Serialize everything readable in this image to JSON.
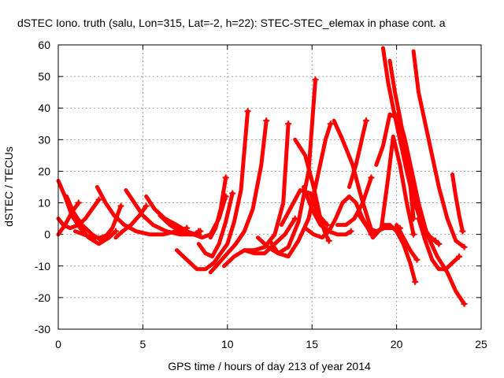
{
  "chart_data": {
    "type": "scatter",
    "title": "dSTEC Iono. truth (salu, Lon=315, Lat=-2, h=22): STEC-STEC_elemax in phase cont. a",
    "xlabel": "GPS time / hours of day 213 of year 2014",
    "ylabel": "dSTEC  / TECUs",
    "xlim": [
      0,
      25
    ],
    "ylim": [
      -30,
      60
    ],
    "xticks": [
      "0",
      "5",
      "10",
      "15",
      "20",
      "25"
    ],
    "yticks": [
      "-30",
      "-20",
      "-10",
      "0",
      "10",
      "20",
      "30",
      "40",
      "50",
      "60"
    ],
    "grid": true,
    "marker": "plus",
    "color": "#ff0000",
    "series": [
      {
        "x": [
          0.0,
          0.3,
          0.7,
          1.2,
          1.6,
          2.0,
          2.4
        ],
        "y": [
          5,
          3,
          2,
          3,
          5,
          8,
          11
        ]
      },
      {
        "x": [
          0.0,
          0.4,
          0.8,
          1.3,
          1.8,
          2.4,
          3.0,
          3.4
        ],
        "y": [
          17,
          12,
          6,
          2,
          -1,
          -3,
          -1,
          1
        ]
      },
      {
        "x": [
          0.0,
          0.4,
          0.8,
          1.2
        ],
        "y": [
          0,
          3,
          7,
          10
        ]
      },
      {
        "x": [
          0.5,
          0.9,
          1.4,
          2.0,
          2.6,
          3.2,
          3.7
        ],
        "y": [
          12,
          7,
          3,
          0,
          -2,
          2,
          9
        ]
      },
      {
        "x": [
          1.0,
          1.5,
          2.0,
          2.5,
          3.0
        ],
        "y": [
          1,
          0,
          -1,
          -1,
          0
        ]
      },
      {
        "x": [
          2.3,
          2.8,
          3.3,
          3.9,
          4.6,
          5.4,
          6.2,
          7.0,
          7.6
        ],
        "y": [
          15,
          10,
          6,
          3,
          1,
          0,
          0,
          1,
          2
        ]
      },
      {
        "x": [
          3.4,
          3.8,
          4.3,
          4.8,
          5.2
        ],
        "y": [
          -1,
          1,
          3,
          6,
          9
        ]
      },
      {
        "x": [
          4.0,
          4.5,
          5.0,
          5.6,
          6.4,
          7.2,
          8.0,
          8.3
        ],
        "y": [
          14,
          10,
          6,
          3,
          1,
          0,
          0,
          1
        ]
      },
      {
        "x": [
          5.2,
          5.7,
          6.3,
          7.0,
          7.6,
          8.1,
          8.4
        ],
        "y": [
          12,
          8,
          5,
          3,
          1,
          0,
          1
        ]
      },
      {
        "x": [
          6.0,
          6.6,
          7.2,
          7.8,
          8.3
        ],
        "y": [
          6,
          3,
          1,
          0,
          0
        ]
      },
      {
        "x": [
          7.0,
          7.5,
          8.0,
          8.5,
          9.0,
          9.5,
          9.9
        ],
        "y": [
          2,
          1,
          0,
          -1,
          0,
          5,
          12
        ]
      },
      {
        "x": [
          7.0,
          7.6,
          8.2,
          8.7,
          9.2,
          9.6,
          10.0,
          10.4,
          10.8,
          11.2
        ],
        "y": [
          -5,
          -8,
          -11,
          -11,
          -9,
          -6,
          -3,
          4,
          14,
          39
        ]
      },
      {
        "x": [
          8.3,
          8.7,
          9.1,
          9.5,
          9.9,
          10.3
        ],
        "y": [
          -3,
          -6,
          -7,
          -3,
          4,
          13
        ]
      },
      {
        "x": [
          9.0,
          9.3,
          9.6,
          9.9
        ],
        "y": [
          -1,
          2,
          8,
          18
        ]
      },
      {
        "x": [
          9.0,
          9.5,
          10.0,
          10.5,
          11.0,
          11.5,
          12.0,
          12.3
        ],
        "y": [
          -12,
          -9,
          -6,
          -3,
          1,
          8,
          22,
          36
        ]
      },
      {
        "x": [
          9.8,
          10.4,
          11.0,
          11.6,
          12.2,
          12.8,
          13.3,
          13.6
        ],
        "y": [
          -10,
          -7,
          -5,
          -5,
          -4,
          0,
          10,
          35
        ]
      },
      {
        "x": [
          11.0,
          11.6,
          12.2,
          12.8,
          13.4,
          14.0
        ],
        "y": [
          -5,
          -6,
          -6,
          -3,
          0,
          5
        ]
      },
      {
        "x": [
          11.8,
          12.4,
          13.0,
          13.6,
          14.2,
          14.8,
          15.2
        ],
        "y": [
          -1,
          -4,
          -6,
          -4,
          4,
          20,
          49
        ]
      },
      {
        "x": [
          12.5,
          13.0,
          13.6,
          14.2,
          14.8,
          15.4,
          15.8,
          16.1
        ],
        "y": [
          -2,
          -6,
          -7,
          -2,
          5,
          20,
          30,
          35
        ]
      },
      {
        "x": [
          13.2,
          13.7,
          14.3,
          14.9,
          15.4,
          15.9
        ],
        "y": [
          3,
          8,
          14,
          13,
          6,
          3
        ]
      },
      {
        "x": [
          14.0,
          14.6,
          15.1,
          15.5,
          15.8,
          16.0
        ],
        "y": [
          30,
          25,
          15,
          5,
          0,
          -2
        ]
      },
      {
        "x": [
          14.5,
          15.0,
          15.5,
          16.0,
          16.5,
          17.0,
          17.3
        ],
        "y": [
          15,
          8,
          3,
          1,
          0,
          0,
          1
        ]
      },
      {
        "x": [
          14.6,
          15.1,
          15.6,
          16.0,
          16.4,
          16.8,
          17.2,
          17.6,
          18.0,
          18.5
        ],
        "y": [
          2,
          0,
          -1,
          1,
          5,
          10,
          12,
          10,
          5,
          0
        ]
      },
      {
        "x": [
          16.3,
          16.8,
          17.4,
          17.9,
          18.3,
          18.6
        ],
        "y": [
          36,
          30,
          22,
          12,
          5,
          0
        ]
      },
      {
        "x": [
          16.5,
          17.0,
          17.5,
          18.0,
          18.5
        ],
        "y": [
          3,
          3,
          5,
          10,
          18
        ]
      },
      {
        "x": [
          17.2,
          17.6,
          17.9,
          18.2
        ],
        "y": [
          15,
          22,
          29,
          36
        ]
      },
      {
        "x": [
          17.8,
          18.3,
          18.8,
          19.3,
          19.8,
          20.2
        ],
        "y": [
          6,
          2,
          1,
          2,
          2,
          2
        ]
      },
      {
        "x": [
          18.6,
          19.1,
          19.5,
          19.8,
          20.2,
          20.6,
          21.0
        ],
        "y": [
          -1,
          2,
          18,
          31,
          22,
          10,
          0
        ]
      },
      {
        "x": [
          18.8,
          19.2,
          19.6,
          20.0,
          20.4,
          20.8,
          21.0
        ],
        "y": [
          22,
          28,
          38,
          37,
          30,
          16,
          5
        ]
      },
      {
        "x": [
          19.2,
          19.5,
          19.8,
          20.2,
          20.6,
          21.0,
          21.4,
          21.8,
          22.3
        ],
        "y": [
          59,
          48,
          40,
          30,
          20,
          11,
          5,
          0,
          -2
        ]
      },
      {
        "x": [
          19.6,
          19.9,
          20.2,
          20.5,
          20.8,
          21.1,
          21.5,
          22.0,
          22.5
        ],
        "y": [
          55,
          45,
          37,
          28,
          18,
          10,
          3,
          -1,
          -3
        ]
      },
      {
        "x": [
          19.2,
          19.6,
          20.0,
          20.4,
          20.8,
          21.1
        ],
        "y": [
          3,
          3,
          1,
          -3,
          -9,
          -15
        ]
      },
      {
        "x": [
          20.0,
          20.4,
          20.8,
          21.2
        ],
        "y": [
          3,
          -1,
          -5,
          -8
        ]
      },
      {
        "x": [
          20.1,
          20.5,
          20.9,
          21.3,
          21.8,
          22.4,
          23.0,
          23.5,
          24.0
        ],
        "y": [
          38,
          30,
          20,
          10,
          0,
          -7,
          -12,
          -18,
          -22
        ]
      },
      {
        "x": [
          21.0,
          21.3,
          21.7,
          22.1,
          22.5,
          23.0,
          23.5,
          24.0
        ],
        "y": [
          58,
          45,
          35,
          25,
          15,
          5,
          -2,
          -4
        ]
      },
      {
        "x": [
          21.3,
          21.7,
          22.1,
          22.5,
          22.9,
          23.3,
          23.7
        ],
        "y": [
          5,
          -2,
          -8,
          -11,
          -11,
          -9,
          -7
        ]
      },
      {
        "x": [
          23.3,
          23.5,
          23.7,
          23.9
        ],
        "y": [
          19,
          12,
          6,
          1
        ]
      }
    ]
  }
}
